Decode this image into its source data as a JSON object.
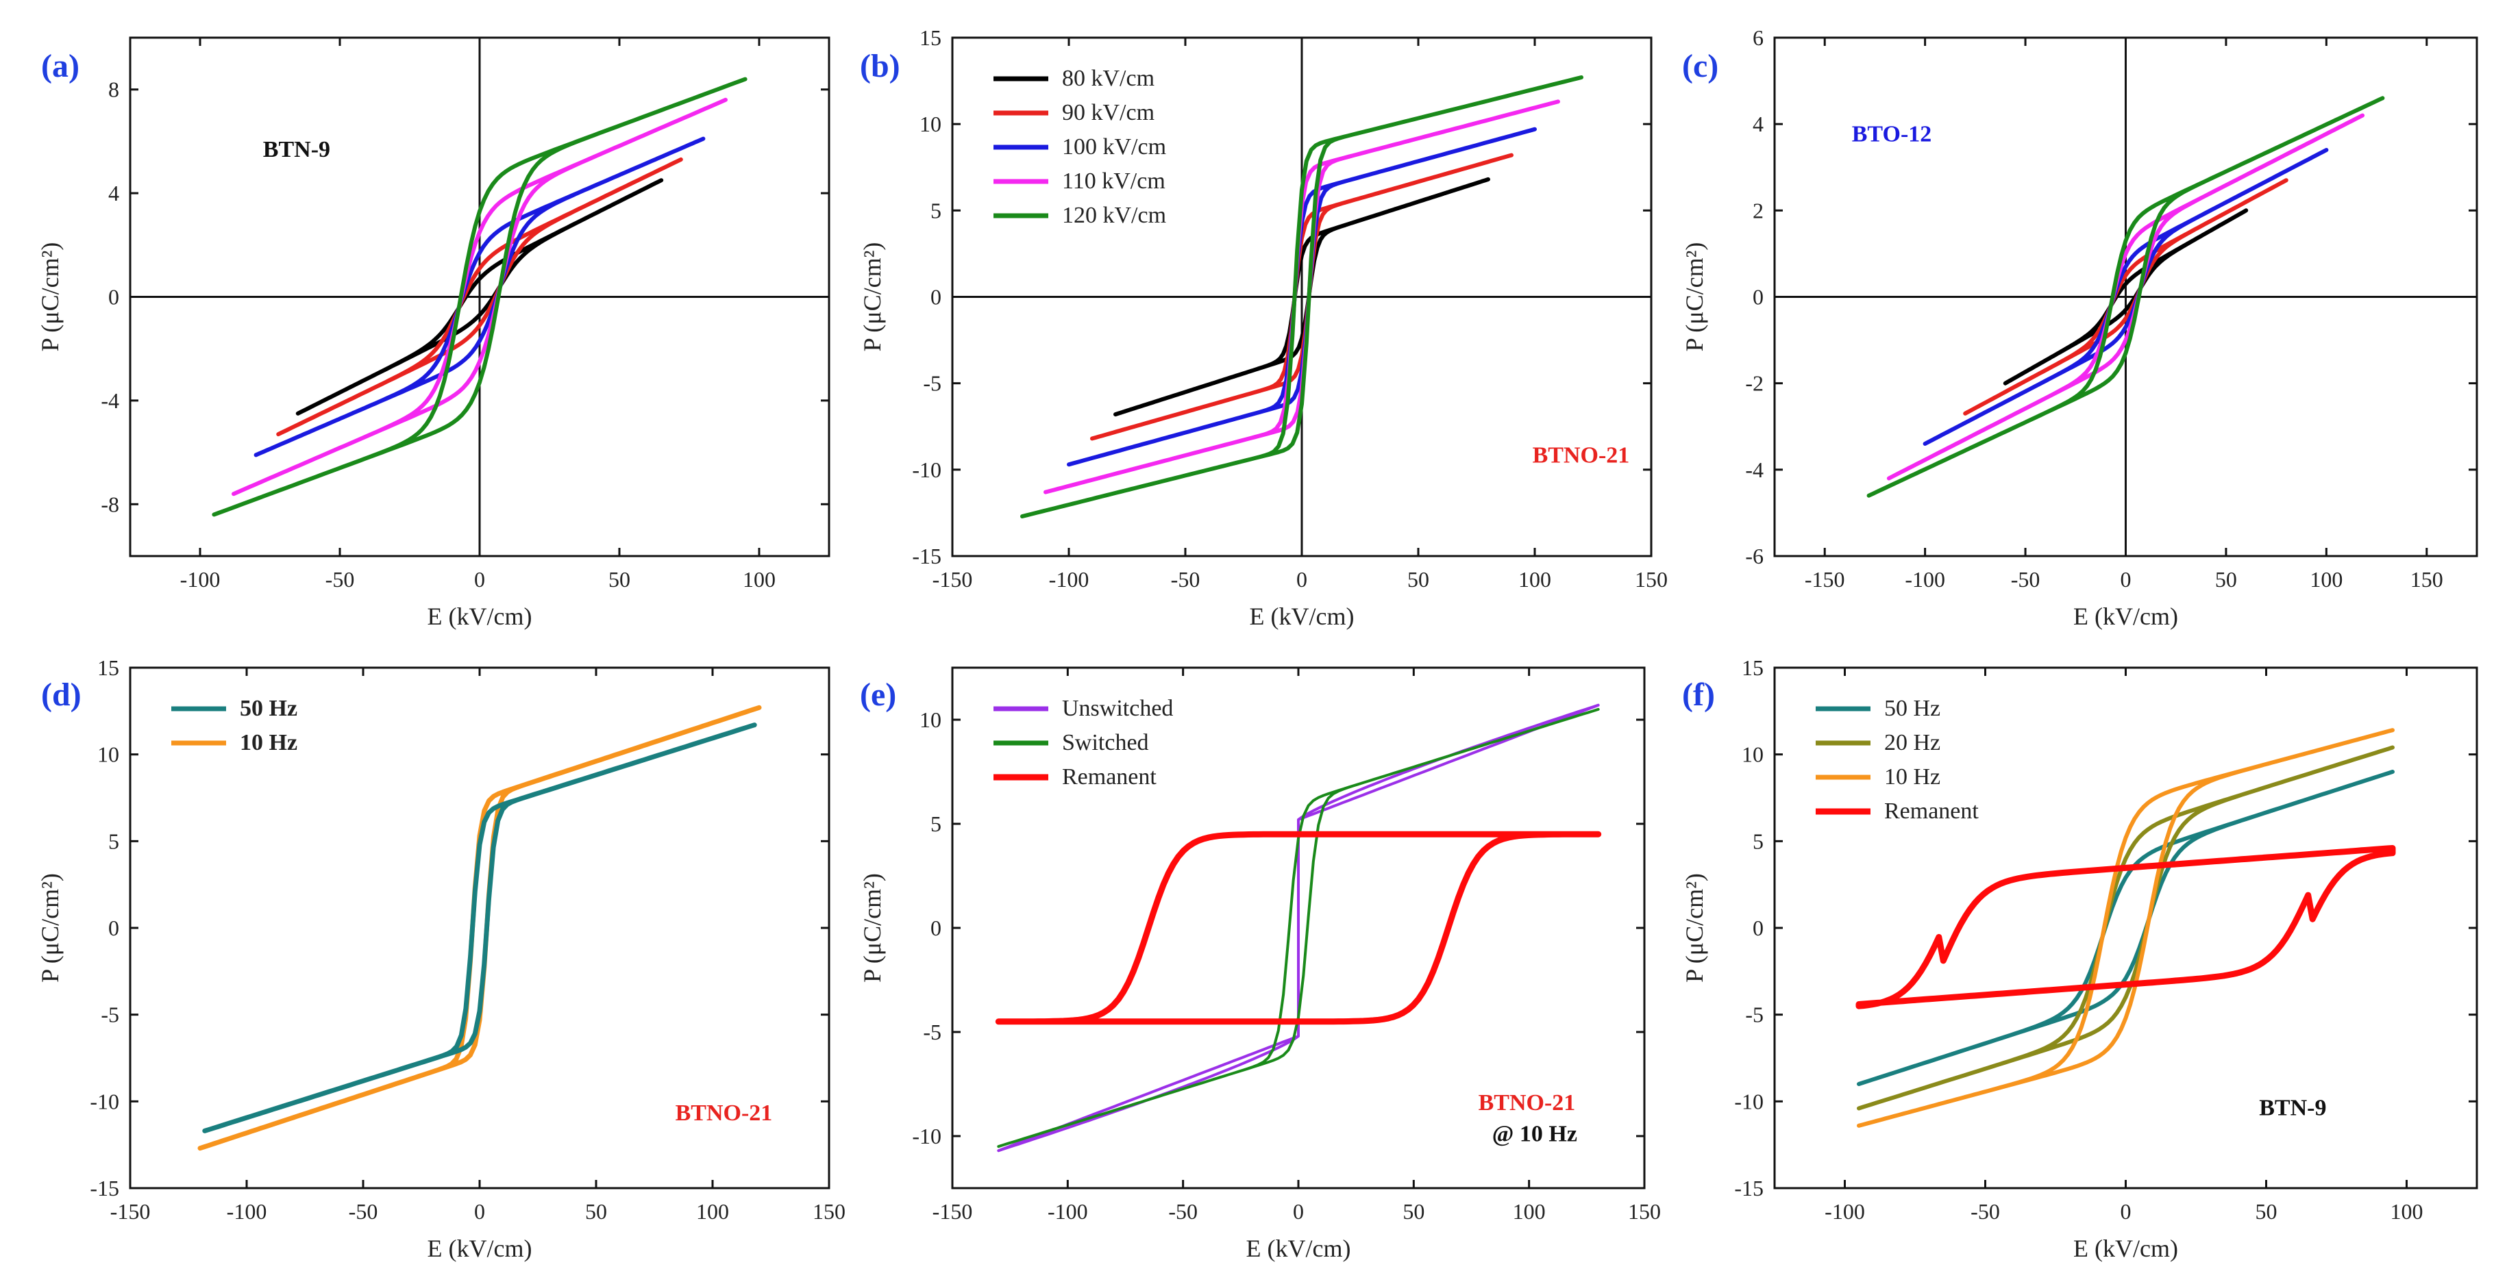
{
  "figure": {
    "type": "ferroelectric P-E hysteresis loops",
    "panel_count": 6
  },
  "chart_data": [
    {
      "type": "line",
      "panel": "(a)",
      "xlabel": "E (kV/cm)",
      "ylabel": "P (μC/cm²)",
      "xlim": [
        -125,
        125
      ],
      "ylim": [
        -10,
        10
      ],
      "xticks": [
        -100,
        -50,
        0,
        50,
        100
      ],
      "yticks": [
        -8,
        -4,
        0,
        4,
        8
      ],
      "zero_lines": true,
      "annotations": [
        {
          "text": "BTN-9",
          "color": "#111111"
        }
      ],
      "legend": null,
      "series": [
        {
          "name": "80 kV/cm",
          "color": "#000000",
          "loop": {
            "emax": 65,
            "pmax": 4.5,
            "pr": 1.5,
            "p0": 0.7,
            "w": 8
          }
        },
        {
          "name": "90 kV/cm",
          "color": "#e8231f",
          "loop": {
            "emax": 72,
            "pmax": 5.3,
            "pr": 1.7,
            "p0": 1.1,
            "w": 8
          }
        },
        {
          "name": "100 kV/cm",
          "color": "#1a1adf",
          "loop": {
            "emax": 80,
            "pmax": 6.1,
            "pr": 2.1,
            "p0": 1.7,
            "w": 8
          }
        },
        {
          "name": "110 kV/cm",
          "color": "#f428f0",
          "loop": {
            "emax": 88,
            "pmax": 7.6,
            "pr": 2.5,
            "p0": 2.5,
            "w": 8
          }
        },
        {
          "name": "120 kV/cm",
          "color": "#1a8a1a",
          "loop": {
            "emax": 95,
            "pmax": 8.4,
            "pr": 2.9,
            "p0": 3.3,
            "w": 8
          }
        }
      ]
    },
    {
      "type": "line",
      "panel": "(b)",
      "xlabel": "E (kV/cm)",
      "ylabel": "P (μC/cm²)",
      "xlim": [
        -150,
        150
      ],
      "ylim": [
        -15,
        15
      ],
      "xticks": [
        -150,
        -100,
        -50,
        0,
        50,
        100,
        150
      ],
      "yticks": [
        -15,
        -10,
        -5,
        0,
        5,
        10,
        15
      ],
      "zero_lines": true,
      "annotations": [
        {
          "text": "BTNO-21",
          "color": "#e8231f"
        }
      ],
      "legend": {
        "position": "top-left",
        "entries": [
          "80 kV/cm",
          "90 kV/cm",
          "100 kV/cm",
          "110 kV/cm",
          "120 kV/cm"
        ]
      },
      "series": [
        {
          "name": "80 kV/cm",
          "color": "#000000",
          "loop": {
            "emax": 80,
            "pmax": 6.8,
            "pr": 2.8,
            "p0": 2.4,
            "w": 3.5
          }
        },
        {
          "name": "90 kV/cm",
          "color": "#e8231f",
          "loop": {
            "emax": 90,
            "pmax": 8.2,
            "pr": 3.4,
            "p0": 3.4,
            "w": 3.5
          }
        },
        {
          "name": "100 kV/cm",
          "color": "#1a1adf",
          "loop": {
            "emax": 100,
            "pmax": 9.7,
            "pr": 4.1,
            "p0": 4.3,
            "w": 3.5
          }
        },
        {
          "name": "110 kV/cm",
          "color": "#f428f0",
          "loop": {
            "emax": 110,
            "pmax": 11.3,
            "pr": 5.0,
            "p0": 5.3,
            "w": 3.5
          }
        },
        {
          "name": "120 kV/cm",
          "color": "#1a8a1a",
          "loop": {
            "emax": 120,
            "pmax": 12.7,
            "pr": 5.7,
            "p0": 6.2,
            "w": 3.5
          }
        }
      ]
    },
    {
      "type": "line",
      "panel": "(c)",
      "xlabel": "E (kV/cm)",
      "ylabel": "P (μC/cm²)",
      "xlim": [
        -175,
        175
      ],
      "ylim": [
        -6,
        6
      ],
      "xticks": [
        -150,
        -100,
        -50,
        0,
        50,
        100,
        150
      ],
      "yticks": [
        -6,
        -4,
        -2,
        0,
        2,
        4,
        6
      ],
      "zero_lines": true,
      "annotations": [
        {
          "text": "BTO-12",
          "color": "#1a1adf"
        }
      ],
      "legend": null,
      "series": [
        {
          "name": "80 kV/cm",
          "color": "#000000",
          "loop": {
            "emax": 60,
            "pmax": 2.0,
            "pr": 0.35,
            "p0": 0.3,
            "w": 8
          }
        },
        {
          "name": "90 kV/cm",
          "color": "#e8231f",
          "loop": {
            "emax": 80,
            "pmax": 2.7,
            "pr": 0.55,
            "p0": 0.5,
            "w": 8
          }
        },
        {
          "name": "100 kV/cm",
          "color": "#1a1adf",
          "loop": {
            "emax": 100,
            "pmax": 3.4,
            "pr": 0.75,
            "p0": 0.7,
            "w": 8
          }
        },
        {
          "name": "110 kV/cm",
          "color": "#f428f0",
          "loop": {
            "emax": 118,
            "pmax": 4.2,
            "pr": 0.95,
            "p0": 1.0,
            "w": 8
          }
        },
        {
          "name": "120 kV/cm",
          "color": "#1a8a1a",
          "loop": {
            "emax": 128,
            "pmax": 4.6,
            "pr": 1.15,
            "p0": 1.3,
            "w": 8
          }
        }
      ]
    },
    {
      "type": "line",
      "panel": "(d)",
      "xlabel": "E (kV/cm)",
      "ylabel": "P (μC/cm²)",
      "xlim": [
        -150,
        150
      ],
      "ylim": [
        -15,
        15
      ],
      "xticks": [
        -150,
        -100,
        -50,
        0,
        50,
        100,
        150
      ],
      "yticks": [
        -15,
        -10,
        -5,
        0,
        5,
        10,
        15
      ],
      "zero_lines": false,
      "annotations": [
        {
          "text": "BTNO-21",
          "color": "#e8231f"
        }
      ],
      "legend": {
        "position": "top-left",
        "entries": [
          "50 Hz",
          "10 Hz"
        ],
        "bold": true
      },
      "series": [
        {
          "name": "10 Hz",
          "color": "#f7941d",
          "loop": {
            "emax": 120,
            "pmax": 12.7,
            "pr": 5.7,
            "p0": 5.3,
            "w": 3.5
          }
        },
        {
          "name": "50 Hz",
          "color": "#1a7f7f",
          "loop": {
            "emax": 118,
            "pmax": 11.7,
            "pr": 5.5,
            "p0": 4.8,
            "w": 3.5
          }
        }
      ]
    },
    {
      "type": "line",
      "panel": "(e)",
      "xlabel": "E (kV/cm)",
      "ylabel": "P (μC/cm²)",
      "xlim": [
        -150,
        150
      ],
      "ylim": [
        -12.5,
        12.5
      ],
      "xticks": [
        -150,
        -100,
        -50,
        0,
        50,
        100,
        150
      ],
      "yticks": [
        -10,
        -5,
        0,
        5,
        10
      ],
      "zero_lines": false,
      "annotations": [
        {
          "text": "BTNO-21",
          "color": "#e8231f"
        },
        {
          "text": "@ 10 Hz",
          "color": "#111111"
        }
      ],
      "legend": {
        "position": "top-left",
        "entries": [
          "Unswitched",
          "Switched",
          "Remanent"
        ]
      },
      "series": [
        {
          "name": "Unswitched",
          "color": "#9b30e8",
          "kind": "unswitched",
          "emax": 130,
          "pmax": 10.7,
          "p0": 5.2
        },
        {
          "name": "Switched",
          "color": "#1a8a1a",
          "loop": {
            "emax": 130,
            "pmax": 10.5,
            "pr": 4.3,
            "p0": 4.3,
            "w": 4.5
          }
        },
        {
          "name": "Remanent",
          "color": "#ff0a0a",
          "kind": "remanent",
          "emax": 130,
          "pr": 4.5,
          "ec": 65,
          "w": 13
        }
      ]
    },
    {
      "type": "line",
      "panel": "(f)",
      "xlabel": "E (kV/cm)",
      "ylabel": "P (μC/cm²)",
      "xlim": [
        -125,
        125
      ],
      "ylim": [
        -15,
        15
      ],
      "xticks": [
        -100,
        -50,
        0,
        50,
        100
      ],
      "yticks": [
        -15,
        -10,
        -5,
        0,
        5,
        10,
        15
      ],
      "zero_lines": false,
      "annotations": [
        {
          "text": "BTN-9",
          "color": "#111111"
        }
      ],
      "legend": {
        "position": "top-left",
        "entries": [
          "50 Hz",
          "20 Hz",
          "10 Hz",
          "Remanent"
        ]
      },
      "series": [
        {
          "name": "50 Hz",
          "color": "#1a7f7f",
          "loop": {
            "emax": 95,
            "pmax": 9.0,
            "pr": 4.0,
            "p0": 2.9,
            "w": 9
          }
        },
        {
          "name": "20 Hz",
          "color": "#8a8a1a",
          "loop": {
            "emax": 95,
            "pmax": 10.4,
            "pr": 5.0,
            "p0": 4.0,
            "w": 9
          }
        },
        {
          "name": "10 Hz",
          "color": "#f7941d",
          "loop": {
            "emax": 95,
            "pmax": 11.4,
            "pr": 5.8,
            "p0": 5.2,
            "w": 9
          }
        },
        {
          "name": "Remanent",
          "color": "#ff0a0a",
          "kind": "remanent_slant",
          "emax": 95,
          "prTop": 4.6,
          "prBot": 4.4,
          "ec": 65,
          "w": 13
        }
      ]
    }
  ]
}
